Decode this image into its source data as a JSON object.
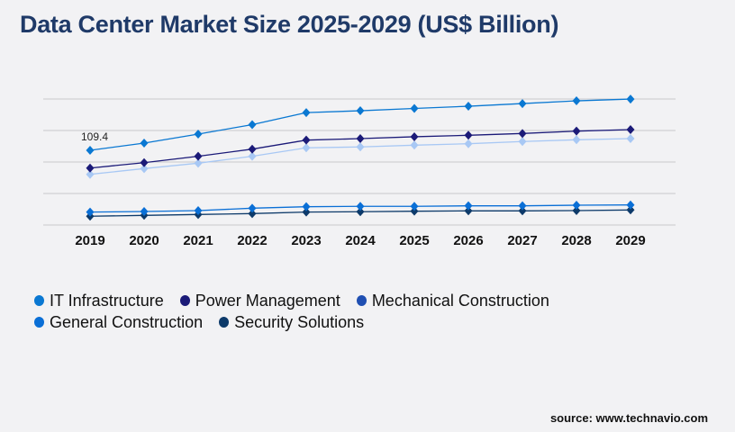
{
  "chart_data": {
    "type": "line",
    "title": "Data Center Market Size 2025-2029 (US$ Billion)",
    "categories": [
      "2019",
      "2020",
      "2021",
      "2022",
      "2023",
      "2024",
      "2025",
      "2026",
      "2027",
      "2028",
      "2029"
    ],
    "ylim": [
      0,
      184.5
    ],
    "grid": true,
    "legend_position": "bottom-left",
    "series": [
      {
        "name": "IT Infrastructure",
        "color": "#0a78d2",
        "marker_color": "#0a78d2",
        "values": [
          109.4,
          119.9,
          133.1,
          147.0,
          164.6,
          167.3,
          170.7,
          173.9,
          177.8,
          181.8,
          184.4
        ]
      },
      {
        "name": "Power Management",
        "color": "#1b1a78",
        "marker_color": "#1b1a78",
        "values": [
          83.4,
          91.3,
          100.6,
          111.1,
          124.3,
          126.5,
          129.2,
          131.4,
          134.0,
          137.5,
          139.7
        ]
      },
      {
        "name": "Mechanical Construction",
        "color": "#a8c8f4",
        "marker_color": "#a8c8f4",
        "legend_color": "#1f4fb2",
        "values": [
          74.2,
          82.6,
          90.5,
          100.6,
          113.0,
          114.3,
          116.9,
          119.0,
          122.2,
          124.8,
          126.5
        ]
      },
      {
        "name": "General Construction",
        "color": "#0a6fd6",
        "marker_color": "#0a6fd6",
        "values": [
          18.9,
          19.8,
          21.1,
          24.6,
          26.8,
          27.3,
          27.3,
          28.1,
          28.1,
          29.0,
          29.4
        ]
      },
      {
        "name": "Security Solutions",
        "color": "#0d3a6a",
        "marker_color": "#0d3a6a",
        "values": [
          12.8,
          14.1,
          15.4,
          16.7,
          18.9,
          19.4,
          20.2,
          20.7,
          20.7,
          21.1,
          22.0
        ]
      }
    ],
    "annotations": [
      {
        "series": 0,
        "category": "2019",
        "text": "109.4"
      }
    ]
  },
  "source": "source: www.technavio.com"
}
